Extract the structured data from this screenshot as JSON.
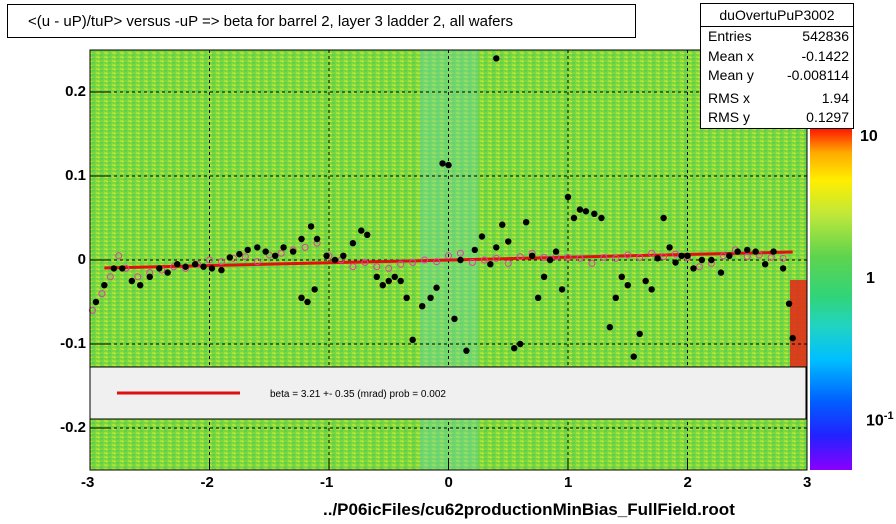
{
  "title": "<(u - uP)/tuP> versus  -uP => beta for barrel 2, layer 3 ladder 2, all wafers",
  "stats": {
    "name": "duOvertuPuP3002",
    "rows": [
      {
        "k": "Entries",
        "v": "542836"
      },
      {
        "k": "Mean x",
        "v": "-0.1422"
      },
      {
        "k": "Mean y",
        "v": "-0.008114"
      },
      {
        "k": "RMS x",
        "v": "1.94"
      },
      {
        "k": "RMS y",
        "v": "0.1297"
      }
    ]
  },
  "footer": "../P06icFiles/cu62productionMinBias_FullField.root",
  "legend_text": "beta =    3.21 +-  0.35 (mrad) prob = 0.002",
  "colorbar_labels": [
    "10",
    "1",
    "10"
  ],
  "colorbar_exp": "-1",
  "chart_data": {
    "type": "scatter",
    "xlim": [
      -3,
      3
    ],
    "ylim": [
      -0.25,
      0.25
    ],
    "x_ticks": [
      -3,
      -2,
      -1,
      0,
      1,
      2,
      3
    ],
    "x_tick_labels": [
      "-3",
      "-2",
      "-1",
      "0",
      "1",
      "2",
      "3"
    ],
    "y_ticks": [
      -0.2,
      -0.1,
      0,
      0.1,
      0.2
    ],
    "y_tick_labels": [
      "-0.2",
      "-0.1",
      "0",
      "0.1",
      "0.2"
    ],
    "grid": true,
    "fit_line": {
      "x": [
        -2.88,
        2.88
      ],
      "y": [
        -0.0095,
        0.0095
      ]
    },
    "black_points": [
      [
        -2.95,
        -0.05
      ],
      [
        -2.88,
        -0.03
      ],
      [
        -2.8,
        -0.01
      ],
      [
        -2.73,
        -0.01
      ],
      [
        -2.65,
        -0.025
      ],
      [
        -2.58,
        -0.03
      ],
      [
        -2.5,
        -0.02
      ],
      [
        -2.42,
        -0.01
      ],
      [
        -2.35,
        -0.015
      ],
      [
        -2.27,
        -0.005
      ],
      [
        -2.2,
        -0.008
      ],
      [
        -2.12,
        -0.005
      ],
      [
        -2.05,
        -0.008
      ],
      [
        -1.98,
        -0.01
      ],
      [
        -1.9,
        -0.012
      ],
      [
        -1.83,
        0.003
      ],
      [
        -1.75,
        0.007
      ],
      [
        -1.68,
        0.012
      ],
      [
        -1.6,
        0.015
      ],
      [
        -1.53,
        0.01
      ],
      [
        -1.45,
        0.005
      ],
      [
        -1.38,
        0.015
      ],
      [
        -1.3,
        0.01
      ],
      [
        -1.23,
        0.025
      ],
      [
        -1.15,
        0.04
      ],
      [
        -1.1,
        0.025
      ],
      [
        -1.02,
        0.005
      ],
      [
        -0.95,
        0.0
      ],
      [
        -0.88,
        0.005
      ],
      [
        -0.8,
        0.02
      ],
      [
        -0.73,
        0.035
      ],
      [
        -0.68,
        0.03
      ],
      [
        -1.23,
        -0.045
      ],
      [
        -1.18,
        -0.05
      ],
      [
        -1.12,
        -0.035
      ],
      [
        -0.6,
        -0.02
      ],
      [
        -0.55,
        -0.03
      ],
      [
        -0.5,
        -0.025
      ],
      [
        -0.45,
        -0.02
      ],
      [
        -0.4,
        -0.025
      ],
      [
        -0.35,
        -0.045
      ],
      [
        -0.3,
        -0.095
      ],
      [
        -0.22,
        -0.055
      ],
      [
        -0.15,
        -0.045
      ],
      [
        -0.1,
        -0.033
      ],
      [
        -0.05,
        0.115
      ],
      [
        0.0,
        0.113
      ],
      [
        0.05,
        -0.07
      ],
      [
        0.1,
        -0.0
      ],
      [
        0.15,
        -0.108
      ],
      [
        0.22,
        0.012
      ],
      [
        0.28,
        0.028
      ],
      [
        0.35,
        -0.005
      ],
      [
        0.4,
        0.015
      ],
      [
        0.45,
        0.042
      ],
      [
        0.5,
        0.022
      ],
      [
        0.55,
        -0.105
      ],
      [
        0.6,
        -0.1
      ],
      [
        0.65,
        0.045
      ],
      [
        0.7,
        0.005
      ],
      [
        0.75,
        -0.045
      ],
      [
        0.8,
        -0.02
      ],
      [
        0.85,
        0.0
      ],
      [
        0.9,
        0.01
      ],
      [
        0.95,
        -0.035
      ],
      [
        1.0,
        0.075
      ],
      [
        1.05,
        0.05
      ],
      [
        1.1,
        0.06
      ],
      [
        1.15,
        0.058
      ],
      [
        1.22,
        0.055
      ],
      [
        1.28,
        0.05
      ],
      [
        1.35,
        -0.08
      ],
      [
        1.4,
        -0.045
      ],
      [
        1.45,
        -0.02
      ],
      [
        1.5,
        -0.03
      ],
      [
        1.55,
        -0.115
      ],
      [
        1.6,
        -0.088
      ],
      [
        1.65,
        -0.025
      ],
      [
        1.7,
        -0.035
      ],
      [
        1.75,
        0.002
      ],
      [
        1.8,
        0.05
      ],
      [
        1.85,
        0.015
      ],
      [
        1.9,
        -0.003
      ],
      [
        1.95,
        0.005
      ],
      [
        2.0,
        0.005
      ],
      [
        2.05,
        -0.01
      ],
      [
        2.12,
        -0.0
      ],
      [
        2.2,
        0.0
      ],
      [
        2.28,
        -0.015
      ],
      [
        2.35,
        0.005
      ],
      [
        2.42,
        0.01
      ],
      [
        2.5,
        0.012
      ],
      [
        2.57,
        0.01
      ],
      [
        2.65,
        -0.005
      ],
      [
        2.72,
        0.01
      ],
      [
        2.8,
        -0.01
      ],
      [
        2.85,
        -0.052
      ],
      [
        2.88,
        -0.093
      ],
      [
        0.4,
        0.24
      ]
    ],
    "red_open_points": [
      [
        -2.98,
        -0.06
      ],
      [
        -2.9,
        -0.04
      ],
      [
        -2.83,
        -0.02
      ],
      [
        -2.76,
        0.005
      ],
      [
        -2.7,
        -0.01
      ],
      [
        -2.6,
        -0.02
      ],
      [
        -2.5,
        -0.015
      ],
      [
        -2.4,
        -0.012
      ],
      [
        -2.3,
        -0.008
      ],
      [
        -2.2,
        -0.01
      ],
      [
        -2.1,
        -0.005
      ],
      [
        -2.0,
        0.0
      ],
      [
        -1.9,
        -0.002
      ],
      [
        -1.8,
        0.002
      ],
      [
        -1.7,
        0.004
      ],
      [
        -1.6,
        -0.002
      ],
      [
        -1.5,
        0.006
      ],
      [
        -1.4,
        0.008
      ],
      [
        -1.3,
        0.012
      ],
      [
        -1.2,
        0.015
      ],
      [
        -1.1,
        0.02
      ],
      [
        -1.0,
        0.005
      ],
      [
        -0.9,
        0.0
      ],
      [
        -0.8,
        -0.008
      ],
      [
        -0.7,
        -0.003
      ],
      [
        -0.6,
        -0.008
      ],
      [
        -0.5,
        -0.01
      ],
      [
        -0.4,
        -0.005
      ],
      [
        -0.3,
        -0.003
      ],
      [
        -0.2,
        0.0
      ],
      [
        -0.1,
        -0.002
      ],
      [
        0.0,
        0.005
      ],
      [
        0.1,
        0.008
      ],
      [
        0.2,
        -0.003
      ],
      [
        0.3,
        0.0
      ],
      [
        0.4,
        0.002
      ],
      [
        0.5,
        -0.004
      ],
      [
        0.6,
        0.004
      ],
      [
        0.7,
        0.008
      ],
      [
        0.8,
        0.003
      ],
      [
        0.9,
        0.004
      ],
      [
        1.0,
        0.003
      ],
      [
        1.1,
        0.002
      ],
      [
        1.2,
        -0.004
      ],
      [
        1.3,
        0.003
      ],
      [
        1.4,
        0.002
      ],
      [
        1.5,
        0.006
      ],
      [
        1.6,
        0.003
      ],
      [
        1.7,
        0.008
      ],
      [
        1.8,
        0.004
      ],
      [
        1.9,
        0.007
      ],
      [
        2.0,
        0.003
      ],
      [
        2.1,
        -0.008
      ],
      [
        2.2,
        -0.004
      ],
      [
        2.3,
        0.005
      ],
      [
        2.4,
        0.012
      ],
      [
        2.5,
        0.004
      ],
      [
        2.6,
        0.006
      ],
      [
        2.7,
        0.003
      ],
      [
        2.8,
        0.002
      ]
    ]
  }
}
